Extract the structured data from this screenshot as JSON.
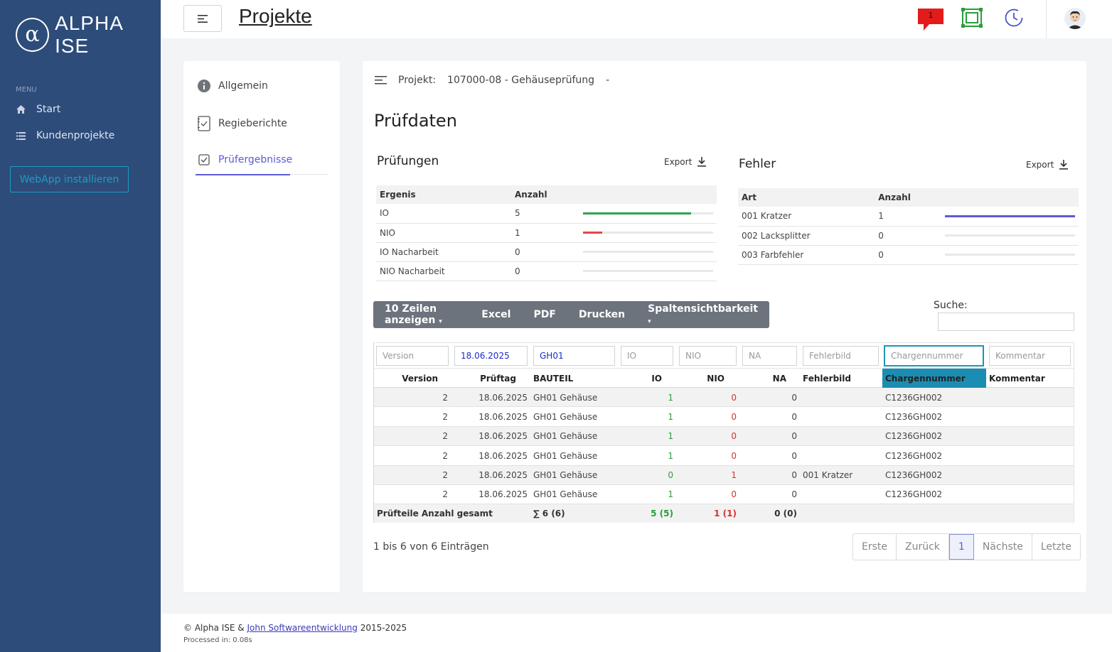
{
  "sidebar": {
    "logo_symbol": "α",
    "logo_text": "ALPHA ISE",
    "menu_label": "MENU",
    "items": [
      {
        "label": "Start",
        "icon": "home-icon"
      },
      {
        "label": "Kundenprojekte",
        "icon": "list-icon"
      }
    ],
    "install_label": "WebApp installieren"
  },
  "topbar": {
    "title": "Projekte",
    "notification_count": "1"
  },
  "leftnav": {
    "items": [
      {
        "label": "Allgemein",
        "icon": "info-icon"
      },
      {
        "label": "Regieberichte",
        "icon": "report-icon"
      },
      {
        "label": "Prüfergebnisse",
        "icon": "checkbox-icon",
        "active": true
      }
    ]
  },
  "project": {
    "label": "Projekt:",
    "value": "107000-08 - Gehäuseprüfung",
    "suffix": "-"
  },
  "section_title": "Prüfdaten",
  "pruefungen": {
    "title": "Prüfungen",
    "export_label": "Export",
    "headers": [
      "Ergenis",
      "Anzahl"
    ],
    "rows": [
      {
        "label": "IO",
        "count": "5",
        "fill": 0.83,
        "color": "#2ea44f"
      },
      {
        "label": "NIO",
        "count": "1",
        "fill": 0.15,
        "color": "#e04848"
      },
      {
        "label": "IO Nacharbeit",
        "count": "0",
        "fill": 0,
        "color": "#2ea44f"
      },
      {
        "label": "NIO Nacharbeit",
        "count": "0",
        "fill": 0,
        "color": "#2ea44f"
      }
    ]
  },
  "fehler": {
    "title": "Fehler",
    "export_label": "Export",
    "headers": [
      "Art",
      "Anzahl"
    ],
    "rows": [
      {
        "label": "001 Kratzer",
        "count": "1",
        "fill": 1.0,
        "color": "#5b5bd6"
      },
      {
        "label": "002 Lacksplitter",
        "count": "0",
        "fill": 0,
        "color": "#5b5bd6"
      },
      {
        "label": "003 Farbfehler",
        "count": "0",
        "fill": 0,
        "color": "#5b5bd6"
      }
    ]
  },
  "toolbar": {
    "show_rows": "10 Zeilen anzeigen",
    "excel": "Excel",
    "pdf": "PDF",
    "print": "Drucken",
    "columns": "Spaltensichtbarkeit",
    "search_label": "Suche:"
  },
  "filters": {
    "version": "Version",
    "date_value": "18.06.2025",
    "part_value": "GH01",
    "io": "IO",
    "nio": "NIO",
    "na": "NA",
    "fehlerbild": "Fehlerbild",
    "charge": "Chargennummer",
    "kommentar": "Kommentar"
  },
  "table": {
    "headers": [
      "Version",
      "Prüftag",
      "BAUTEIL",
      "IO",
      "NIO",
      "NA",
      "Fehlerbild",
      "Chargennummer",
      "Kommentar"
    ],
    "rows": [
      {
        "version": "2",
        "date": "18.06.2025",
        "part": "GH01 Gehäuse",
        "io": "1",
        "nio": "0",
        "na": "0",
        "fehler": "",
        "charge": "C1236GH002",
        "kommentar": ""
      },
      {
        "version": "2",
        "date": "18.06.2025",
        "part": "GH01 Gehäuse",
        "io": "1",
        "nio": "0",
        "na": "0",
        "fehler": "",
        "charge": "C1236GH002",
        "kommentar": ""
      },
      {
        "version": "2",
        "date": "18.06.2025",
        "part": "GH01 Gehäuse",
        "io": "1",
        "nio": "0",
        "na": "0",
        "fehler": "",
        "charge": "C1236GH002",
        "kommentar": ""
      },
      {
        "version": "2",
        "date": "18.06.2025",
        "part": "GH01 Gehäuse",
        "io": "1",
        "nio": "0",
        "na": "0",
        "fehler": "",
        "charge": "C1236GH002",
        "kommentar": ""
      },
      {
        "version": "2",
        "date": "18.06.2025",
        "part": "GH01 Gehäuse",
        "io": "0",
        "nio": "1",
        "na": "0",
        "fehler": "001 Kratzer",
        "charge": "C1236GH002",
        "kommentar": ""
      },
      {
        "version": "2",
        "date": "18.06.2025",
        "part": "GH01 Gehäuse",
        "io": "1",
        "nio": "0",
        "na": "0",
        "fehler": "",
        "charge": "C1236GH002",
        "kommentar": ""
      }
    ],
    "footer": {
      "label": "Prüfteile Anzahl gesamt",
      "total": "∑ 6 (6)",
      "io": "5 (5)",
      "nio": "1 (1)",
      "na": "0 (0)"
    }
  },
  "info": "1 bis 6 von 6 Einträgen",
  "pager": {
    "first": "Erste",
    "prev": "Zurück",
    "current": "1",
    "next": "Nächste",
    "last": "Letzte"
  },
  "footer": {
    "copyright_prefix": "© Alpha ISE &",
    "link": "John Softwareentwicklung",
    "years": "2015-2025",
    "processed": "Processed in: 0.08s"
  }
}
